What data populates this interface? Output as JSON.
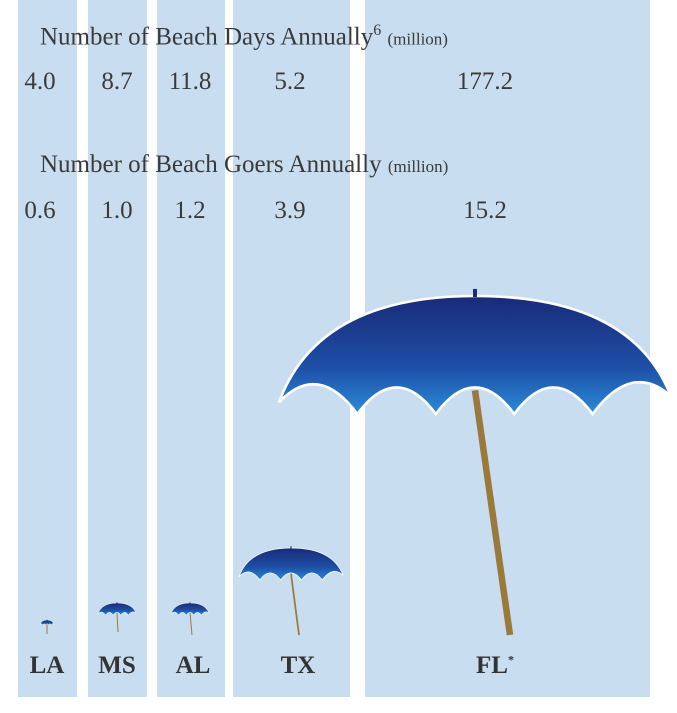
{
  "heading_days": {
    "text": "Number of Beach Days Annually",
    "note": "6",
    "unit": "(million)"
  },
  "heading_goers": {
    "text": "Number of Beach Goers Annually",
    "unit": "(million)"
  },
  "states": [
    {
      "label": "LA",
      "days": "4.0",
      "goers": "0.6"
    },
    {
      "label": "MS",
      "days": "8.7",
      "goers": "1.0"
    },
    {
      "label": "AL",
      "days": "11.8",
      "goers": "1.2"
    },
    {
      "label": "TX",
      "days": "5.2",
      "goers": "3.9"
    },
    {
      "label": "FL",
      "note": "*",
      "days": "177.2",
      "goers": "15.2"
    }
  ]
}
